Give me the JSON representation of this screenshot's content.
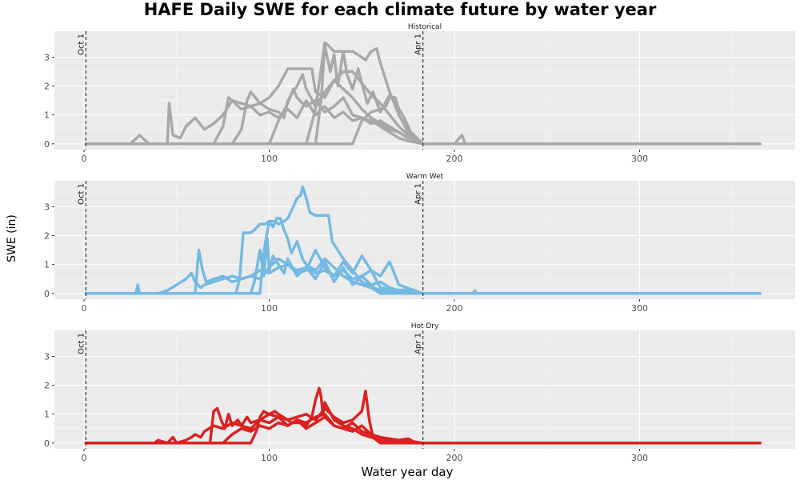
{
  "chart_data": {
    "type": "line",
    "title": "HAFE Daily SWE for each climate future by water year",
    "xlabel": "Water year day",
    "ylabel": "SWE (in)",
    "xlim": [
      -16,
      384
    ],
    "ylim": [
      -0.2,
      3.9
    ],
    "x_ticks": [
      0,
      100,
      200,
      300
    ],
    "y_ticks": [
      0,
      1,
      2,
      3
    ],
    "grid": true,
    "legend": "none",
    "reference_lines": [
      {
        "x": 1,
        "label": "Oct 1"
      },
      {
        "x": 183,
        "label": "Apr 1"
      }
    ],
    "panels": [
      {
        "name": "Historical",
        "color": "#A8A8A8",
        "series": [
          {
            "x": [
              1,
              25,
              30,
              35,
              40,
              45,
              46,
              48,
              52,
              55,
              60,
              65,
              70,
              75,
              80,
              85,
              90,
              95,
              100,
              105,
              110,
              115,
              120,
              125,
              130,
              135,
              140,
              145,
              150,
              155,
              160,
              165,
              170,
              175,
              180,
              183,
              200,
              204,
              206,
              365
            ],
            "y": [
              0,
              0,
              0.3,
              0,
              0,
              0,
              1.4,
              0.3,
              0.2,
              0.6,
              0.9,
              0.5,
              0.7,
              1.0,
              1.5,
              1.2,
              1.3,
              1.0,
              1.1,
              0.9,
              1.2,
              0.9,
              1.5,
              1.0,
              1.3,
              0.9,
              1.1,
              0.8,
              0.9,
              0.7,
              0.8,
              0.6,
              0.4,
              0.2,
              0.1,
              0,
              0,
              0.3,
              0,
              0
            ]
          },
          {
            "x": [
              1,
              70,
              75,
              78,
              80,
              85,
              90,
              95,
              100,
              105,
              108,
              110,
              115,
              118,
              120,
              125,
              130,
              135,
              140,
              145,
              150,
              155,
              160,
              165,
              170,
              175,
              180,
              183,
              365
            ],
            "y": [
              0,
              0,
              0.6,
              1.6,
              1.5,
              1.4,
              1.3,
              1.4,
              1.2,
              1.1,
              0.9,
              1.5,
              2.0,
              2.4,
              1.9,
              1.3,
              1.8,
              2.2,
              1.9,
              1.6,
              1.2,
              0.9,
              0.7,
              0.5,
              0.4,
              0.2,
              0.1,
              0,
              0
            ]
          },
          {
            "x": [
              1,
              80,
              85,
              88,
              90,
              95,
              100,
              105,
              110,
              115,
              120,
              123,
              125,
              130,
              135,
              140,
              145,
              150,
              155,
              160,
              165,
              170,
              175,
              183,
              365
            ],
            "y": [
              0,
              0,
              0.5,
              1.5,
              1.8,
              1.4,
              1.6,
              2.0,
              2.6,
              2.6,
              2.6,
              2.6,
              1.8,
              1.6,
              2.2,
              2.5,
              2.5,
              2.1,
              1.7,
              1.4,
              1.0,
              0.6,
              0.3,
              0,
              0
            ]
          },
          {
            "x": [
              1,
              120,
              125,
              128,
              130,
              132,
              135,
              140,
              145,
              150,
              152,
              155,
              158,
              160,
              165,
              170,
              175,
              183,
              365
            ],
            "y": [
              0,
              0,
              1.2,
              2.6,
              3.5,
              3.4,
              3.2,
              3.2,
              3.2,
              3.0,
              2.9,
              3.2,
              3.3,
              2.8,
              1.8,
              1.0,
              0.4,
              0,
              0
            ]
          },
          {
            "x": [
              1,
              125,
              128,
              130,
              133,
              135,
              137,
              140,
              142,
              145,
              148,
              150,
              153,
              156,
              160,
              165,
              168,
              170,
              175,
              183,
              365
            ],
            "y": [
              0,
              0,
              1.5,
              3.4,
              2.5,
              3.1,
              2.0,
              3.2,
              2.4,
              1.9,
              2.6,
              2.1,
              1.4,
              1.8,
              1.1,
              1.7,
              1.4,
              1.0,
              0.5,
              0,
              0
            ]
          },
          {
            "x": [
              1,
              145,
              150,
              155,
              160,
              163,
              165,
              168,
              170,
              173,
              175,
              178,
              183,
              365
            ],
            "y": [
              0,
              0,
              0.8,
              1.1,
              1.2,
              1.3,
              1.6,
              1.6,
              1.2,
              0.9,
              0.6,
              0.2,
              0,
              0
            ]
          },
          {
            "x": [
              1,
              100,
              105,
              110,
              113,
              115,
              118,
              120,
              125,
              130,
              135,
              140,
              145,
              150,
              155,
              160,
              165,
              170,
              175,
              183,
              365
            ],
            "y": [
              0,
              0,
              0.8,
              1.4,
              1.9,
              1.6,
              1.4,
              1.3,
              1.5,
              1.1,
              1.3,
              1.6,
              1.0,
              0.9,
              0.8,
              0.6,
              0.4,
              0.2,
              0.1,
              0,
              0
            ]
          }
        ]
      },
      {
        "name": "Warm Wet",
        "color": "#74B9E3",
        "series": [
          {
            "x": [
              1,
              28,
              29,
              30,
              33,
              40,
              45,
              55,
              58,
              60,
              63,
              65,
              70,
              75,
              80,
              85,
              90,
              95,
              100,
              105,
              110,
              115,
              120,
              125,
              130,
              135,
              140,
              145,
              150,
              155,
              160,
              165,
              170,
              175,
              178,
              180,
              183,
              200,
              210,
              211,
              212,
              365
            ],
            "y": [
              0,
              0,
              0.3,
              0,
              0,
              0,
              0.1,
              0.5,
              0.7,
              0.4,
              0.2,
              0.3,
              0.4,
              0.5,
              0.6,
              0.5,
              0.6,
              0.8,
              0.7,
              0.9,
              1.0,
              0.8,
              0.9,
              0.7,
              0.8,
              0.6,
              0.8,
              0.5,
              0.6,
              0.3,
              0.4,
              0.2,
              0.1,
              0.15,
              0.1,
              0,
              0,
              0,
              0,
              0.1,
              0,
              0
            ]
          },
          {
            "x": [
              1,
              60,
              62,
              64,
              66,
              70,
              75,
              80,
              85,
              90,
              95,
              100,
              105,
              110,
              115,
              120,
              125,
              130,
              135,
              140,
              145,
              150,
              155,
              160,
              165,
              170,
              183,
              365
            ],
            "y": [
              0,
              0,
              1.5,
              0.8,
              0.4,
              0.5,
              0.6,
              0.4,
              0.5,
              0.6,
              0.5,
              0.9,
              1.2,
              1.0,
              0.7,
              0.8,
              1.5,
              0.9,
              0.6,
              1.1,
              0.7,
              1.3,
              0.8,
              0.6,
              1.1,
              0.3,
              0,
              0
            ]
          },
          {
            "x": [
              1,
              82,
              84,
              86,
              88,
              90,
              92,
              95,
              98,
              100,
              102,
              104,
              106,
              108,
              110,
              112,
              115,
              118,
              120,
              125,
              130,
              135,
              140,
              145,
              150,
              155,
              160,
              183,
              365
            ],
            "y": [
              0,
              0,
              0.5,
              2.1,
              2.1,
              2.1,
              2.2,
              2.4,
              2.4,
              2.5,
              2.3,
              2.6,
              2.6,
              2.2,
              1.9,
              1.4,
              1.8,
              1.2,
              1.0,
              0.8,
              1.2,
              0.9,
              0.6,
              0.4,
              0.3,
              0.2,
              0,
              0,
              0
            ]
          },
          {
            "x": [
              1,
              95,
              97,
              100,
              103,
              105,
              108,
              110,
              113,
              115,
              117,
              118,
              120,
              122,
              125,
              128,
              130,
              132,
              134,
              140,
              145,
              150,
              160,
              183,
              365
            ],
            "y": [
              0,
              0,
              1.4,
              2.5,
              2.5,
              2.4,
              2.5,
              2.6,
              3.0,
              3.3,
              3.4,
              3.7,
              3.3,
              2.8,
              2.7,
              2.7,
              2.7,
              2.7,
              1.8,
              1.2,
              0.8,
              0.4,
              0.1,
              0,
              0
            ]
          },
          {
            "x": [
              1,
              90,
              92,
              95,
              97,
              99,
              100,
              102,
              105,
              108,
              110,
              115,
              120,
              125,
              130,
              135,
              140,
              145,
              150,
              155,
              160,
              183,
              365
            ],
            "y": [
              0,
              0,
              0.4,
              1.5,
              0.6,
              1.9,
              0.8,
              1.3,
              1.0,
              0.7,
              1.2,
              0.6,
              0.9,
              0.5,
              1.1,
              0.4,
              0.9,
              0.3,
              0.6,
              0.8,
              0.2,
              0,
              0
            ]
          }
        ]
      },
      {
        "name": "Hot Dry",
        "color": "#DC1F1F",
        "series": [
          {
            "x": [
              1,
              38,
              40,
              45,
              48,
              50,
              55,
              58,
              60,
              63,
              65,
              70,
              75,
              80,
              85,
              90,
              95,
              100,
              105,
              110,
              115,
              120,
              125,
              130,
              135,
              140,
              145,
              150,
              155,
              160,
              165,
              170,
              175,
              178,
              183,
              365
            ],
            "y": [
              0,
              0,
              0.1,
              0,
              0.2,
              0,
              0.1,
              0.2,
              0.3,
              0.2,
              0.4,
              0.6,
              0.5,
              0.7,
              0.6,
              0.5,
              0.8,
              0.7,
              0.9,
              0.6,
              0.8,
              0.7,
              0.9,
              1.0,
              0.6,
              0.5,
              0.7,
              0.4,
              0.3,
              0.2,
              0.1,
              0.1,
              0.15,
              0.05,
              0,
              0
            ]
          },
          {
            "x": [
              1,
              68,
              70,
              72,
              74,
              76,
              78,
              80,
              83,
              85,
              88,
              90,
              95,
              100,
              105,
              110,
              115,
              120,
              125,
              130,
              135,
              140,
              145,
              150,
              152,
              154,
              156,
              160,
              183,
              365
            ],
            "y": [
              0,
              0,
              1.1,
              1.2,
              0.8,
              0.5,
              1.0,
              0.6,
              0.8,
              0.6,
              0.9,
              0.7,
              0.8,
              1.0,
              0.9,
              0.8,
              0.9,
              1.0,
              0.8,
              1.2,
              0.9,
              0.7,
              0.8,
              1.1,
              1.8,
              0.8,
              0.2,
              0,
              0,
              0
            ]
          },
          {
            "x": [
              1,
              90,
              93,
              95,
              97,
              100,
              103,
              105,
              110,
              112,
              115,
              118,
              120,
              123,
              125,
              127,
              128,
              129,
              130,
              135,
              140,
              145,
              150,
              155,
              160,
              183,
              365
            ],
            "y": [
              0,
              0,
              0.4,
              0.9,
              1.1,
              1.0,
              1.1,
              1.0,
              0.8,
              0.7,
              0.7,
              0.7,
              0.6,
              0.9,
              1.5,
              1.9,
              1.6,
              1.0,
              1.4,
              0.8,
              0.6,
              0.5,
              0.3,
              0.2,
              0.1,
              0,
              0
            ]
          },
          {
            "x": [
              1,
              75,
              80,
              85,
              90,
              95,
              100,
              105,
              110,
              115,
              120,
              125,
              130,
              135,
              140,
              145,
              150,
              155,
              160,
              165,
              170,
              183,
              365
            ],
            "y": [
              0,
              0,
              0.3,
              0.5,
              0.4,
              0.6,
              0.5,
              0.7,
              0.6,
              0.8,
              0.5,
              0.7,
              0.9,
              0.6,
              0.5,
              0.4,
              0.6,
              0.3,
              0.2,
              0.15,
              0.1,
              0,
              0
            ]
          }
        ]
      }
    ]
  }
}
